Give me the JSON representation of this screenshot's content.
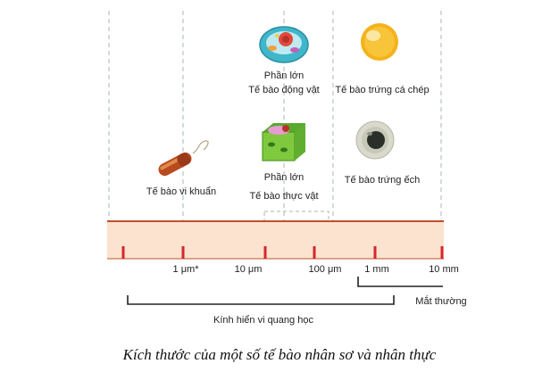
{
  "colors": {
    "band": "#fbe3cf",
    "band_border": "#c0502e",
    "tick": "#d7262e",
    "guide": "#a9b8a9",
    "bracket": "#222222",
    "animal_cell": "#3fb6c9",
    "plant_cell": "#7fc93f",
    "fish_egg": "#f5b21a",
    "frog_egg": "#d9d9cc",
    "bacterium": "#b84a1f"
  },
  "scale": {
    "ticks": [
      {
        "label": ""
      },
      {
        "label": "1 μm*"
      },
      {
        "label": "10 μm"
      },
      {
        "label": "100 μm"
      },
      {
        "label": "1 mm"
      },
      {
        "label": "10 mm"
      }
    ]
  },
  "cells": {
    "bacterium": {
      "icon": "bacterium-icon",
      "label": "Tế bào vi khuẩn"
    },
    "animal": {
      "icon": "animal-cell-icon",
      "label_line1": "Phần lớn",
      "label_line2": "Tế bào động vật"
    },
    "plant": {
      "icon": "plant-cell-icon",
      "label_line1": "Phần lớn",
      "label_line2": "Tế bào thực vật"
    },
    "fish_egg": {
      "icon": "fish-egg-icon",
      "label": "Tế bào trứng cá chép"
    },
    "frog_egg": {
      "icon": "frog-egg-icon",
      "label": "Tế bào trứng ếch"
    }
  },
  "ranges": {
    "naked_eye": "Mắt thường",
    "light_microscope": "Kính hiển vi quang học"
  },
  "caption": "Kích thước của một số tế bào nhân sơ và nhân thực"
}
